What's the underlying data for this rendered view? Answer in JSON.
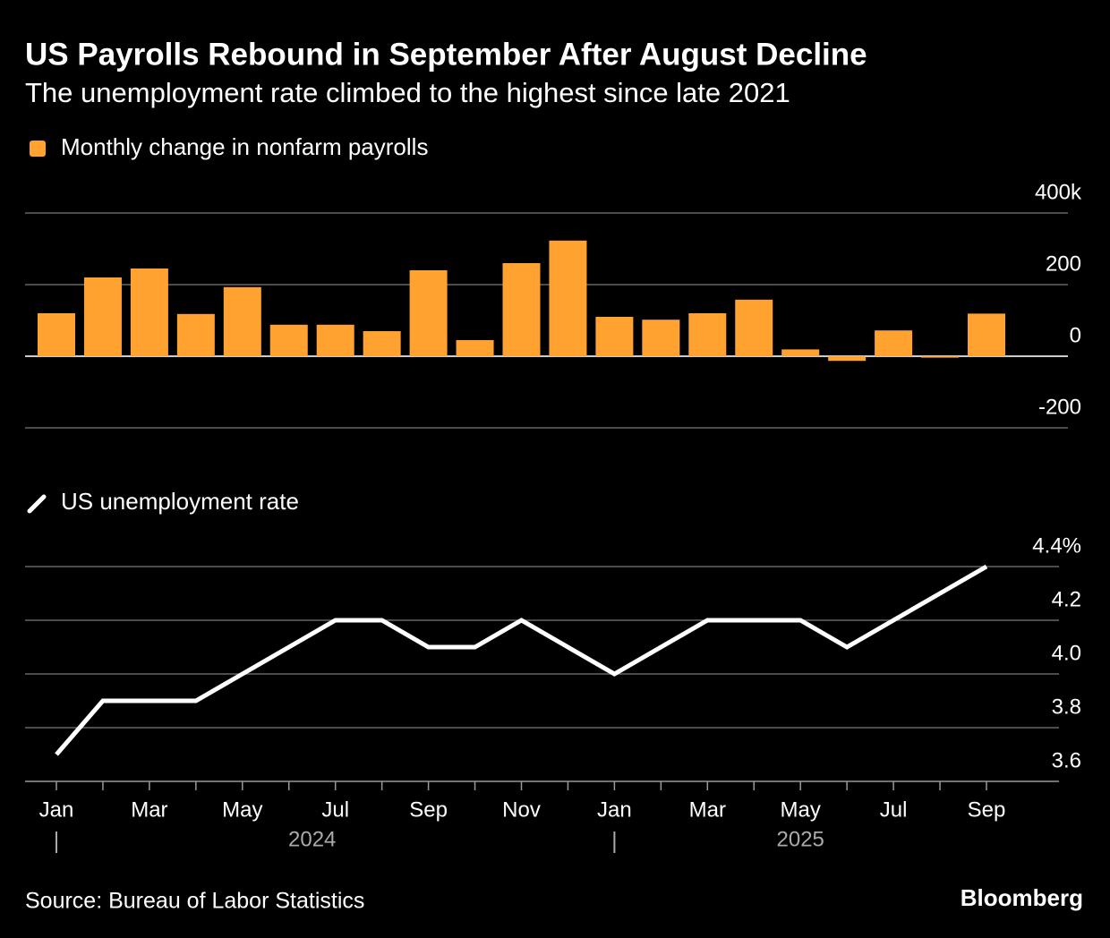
{
  "chart_data": [
    {
      "type": "bar",
      "title": "US Payrolls Rebound in September After August Decline",
      "subtitle": "The unemployment rate climbed to the highest since late 2021",
      "series": [
        {
          "name": "Monthly change in nonfarm payrolls",
          "color": "#ffa230",
          "values": [
            120,
            220,
            245,
            118,
            193,
            88,
            88,
            70,
            240,
            45,
            260,
            323,
            110,
            102,
            120,
            158,
            19,
            -13,
            72,
            -4,
            119
          ]
        }
      ],
      "ylim": [
        -200,
        400
      ],
      "yticks": [
        {
          "value": 400,
          "label": "400k"
        },
        200,
        0,
        -200
      ],
      "grid": true
    },
    {
      "type": "line",
      "categories": [
        "Jan",
        null,
        "Mar",
        null,
        "May",
        null,
        "Jul",
        null,
        "Sep",
        null,
        "Nov",
        null,
        "Jan",
        null,
        "Mar",
        null,
        "May",
        null,
        "Jul",
        null,
        "Sep"
      ],
      "groups": [
        {
          "label": "2024",
          "count": 12
        },
        {
          "label": "2025",
          "count": 9
        }
      ],
      "series": [
        {
          "name": "US unemployment rate",
          "color": "#ffffff",
          "values": [
            3.7,
            3.9,
            3.9,
            3.9,
            4.0,
            4.1,
            4.2,
            4.2,
            4.1,
            4.1,
            4.2,
            4.1,
            4.0,
            4.1,
            4.2,
            4.2,
            4.2,
            4.1,
            4.2,
            4.3,
            4.4
          ]
        }
      ],
      "ylim": [
        3.6,
        4.4
      ],
      "yticks": [
        {
          "value": 4.4,
          "label": "4.4%"
        },
        4.2,
        {
          "value": 4.0,
          "label": "4.0"
        },
        3.8,
        3.6
      ],
      "grid": true
    }
  ],
  "source": "Source: Bureau of Labor Statistics",
  "brand": "Bloomberg"
}
